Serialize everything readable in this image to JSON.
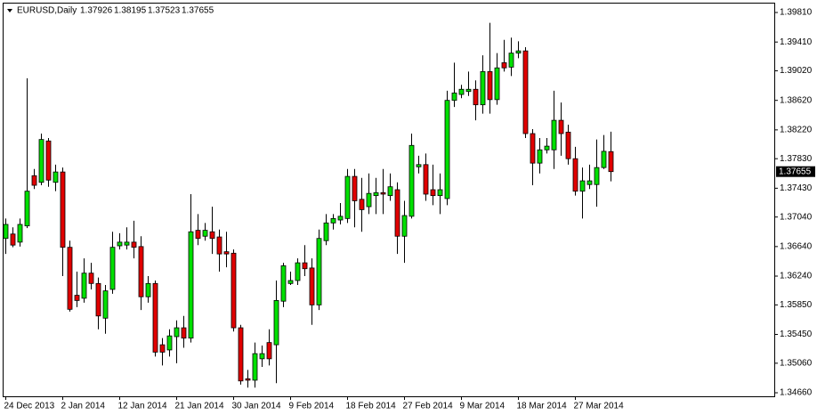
{
  "chart_data": {
    "type": "candlestick",
    "title": "EURUSD,Daily",
    "up_color": "#00e000",
    "down_color": "#e00000",
    "categories": [
      "24 Dec 2013",
      null,
      null,
      null,
      null,
      null,
      null,
      null,
      "2 Jan 2014",
      null,
      null,
      null,
      null,
      null,
      null,
      null,
      "12 Jan 2014",
      null,
      null,
      null,
      null,
      null,
      null,
      null,
      "21 Jan 2014",
      null,
      null,
      null,
      null,
      null,
      null,
      null,
      "30 Jan 2014",
      null,
      null,
      null,
      null,
      null,
      null,
      null,
      "9 Feb 2014",
      null,
      null,
      null,
      null,
      null,
      null,
      null,
      "18 Feb 2014",
      null,
      null,
      null,
      null,
      null,
      null,
      null,
      "27 Feb 2014",
      null,
      null,
      null,
      null,
      null,
      null,
      null,
      "9 Mar 2014",
      null,
      null,
      null,
      null,
      null,
      null,
      null,
      "18 Mar 2014",
      null,
      null,
      null,
      null,
      null,
      null,
      null,
      "27 Mar 2014",
      null,
      null,
      null,
      null,
      null
    ],
    "open": [
      1.3675,
      1.3681,
      1.367,
      1.3692,
      1.376,
      1.3751,
      1.3807,
      1.3751,
      1.3765,
      1.3663,
      1.3598,
      1.3594,
      1.3628,
      1.3614,
      1.3567,
      1.3606,
      1.3665,
      1.3666,
      1.367,
      1.3664,
      1.3596,
      1.3614,
      1.3531,
      1.3524,
      1.3542,
      1.3554,
      1.354,
      1.3686,
      1.3678,
      1.3684,
      1.3677,
      1.3657,
      1.3655,
      1.3554,
      1.3485,
      1.3483,
      1.3512,
      1.3534,
      1.3531,
      1.359,
      1.3614,
      1.3618,
      1.3642,
      1.3635,
      1.3585,
      1.3672,
      1.3696,
      1.37,
      1.3702,
      1.3759,
      1.3728,
      1.3718,
      1.3733,
      1.3737,
      1.3733,
      1.3741,
      1.3678,
      1.3705,
      1.3772,
      1.3775,
      1.3741,
      1.3733,
      1.3729,
      1.3862,
      1.387,
      1.3874,
      1.3877,
      1.3856,
      1.3901,
      1.3863,
      1.3913,
      1.3907,
      1.3926,
      1.3929,
      1.3817,
      1.3777,
      1.3795,
      1.3795,
      1.3835,
      1.3819,
      1.3783,
      1.3739,
      1.3748,
      1.3748,
      1.3771,
      1.37926
    ],
    "high": [
      1.3702,
      1.369,
      1.3702,
      1.3892,
      1.3769,
      1.3817,
      1.3811,
      1.3775,
      1.3771,
      1.3672,
      1.363,
      1.3648,
      1.3642,
      1.3622,
      1.3612,
      1.3684,
      1.3682,
      1.369,
      1.3699,
      1.3678,
      1.3624,
      1.3618,
      1.354,
      1.3552,
      1.3564,
      1.357,
      1.3735,
      1.3708,
      1.3696,
      1.3718,
      1.3687,
      1.3684,
      1.366,
      1.3558,
      1.3497,
      1.3534,
      1.353,
      1.3552,
      1.3618,
      1.3642,
      1.363,
      1.3648,
      1.3666,
      1.3648,
      1.3687,
      1.3708,
      1.3708,
      1.3723,
      1.3769,
      1.3769,
      1.3757,
      1.3763,
      1.3757,
      1.3769,
      1.3763,
      1.3751,
      1.3726,
      1.3817,
      1.3787,
      1.379,
      1.3775,
      1.3763,
      1.3875,
      1.3913,
      1.3883,
      1.3901,
      1.3889,
      1.3923,
      1.3967,
      1.3926,
      1.3944,
      1.3947,
      1.3942,
      1.3934,
      1.3823,
      1.3811,
      1.3811,
      1.3875,
      1.3859,
      1.3829,
      1.3799,
      1.3771,
      1.3775,
      1.3809,
      1.3815,
      1.38195
    ],
    "low": [
      1.3654,
      1.3663,
      1.3664,
      1.3689,
      1.3742,
      1.3747,
      1.3745,
      1.3739,
      1.3624,
      1.3576,
      1.3582,
      1.3588,
      1.3606,
      1.3552,
      1.3546,
      1.36,
      1.366,
      1.366,
      1.3648,
      1.3578,
      1.3588,
      1.3515,
      1.3503,
      1.3515,
      1.3506,
      1.3527,
      1.3534,
      1.3666,
      1.3672,
      1.3654,
      1.363,
      1.3636,
      1.3549,
      1.3477,
      1.3473,
      1.3473,
      1.3501,
      1.3503,
      1.3479,
      1.3582,
      1.3612,
      1.3612,
      1.3624,
      1.3558,
      1.3578,
      1.3666,
      1.3687,
      1.3694,
      1.3696,
      1.369,
      1.3684,
      1.3708,
      1.3708,
      1.3708,
      1.3726,
      1.3654,
      1.3642,
      1.3702,
      1.3763,
      1.3726,
      1.372,
      1.3708,
      1.372,
      1.3853,
      1.3865,
      1.3868,
      1.3835,
      1.3844,
      1.3844,
      1.3856,
      1.3901,
      1.3895,
      1.3919,
      1.3811,
      1.3747,
      1.3763,
      1.379,
      1.3769,
      1.3787,
      1.3775,
      1.3733,
      1.3702,
      1.3742,
      1.3718,
      1.3769,
      1.37523
    ],
    "close": [
      1.3694,
      1.3666,
      1.3694,
      1.3739,
      1.3747,
      1.3809,
      1.3754,
      1.3765,
      1.3663,
      1.3579,
      1.3591,
      1.3628,
      1.3614,
      1.357,
      1.3604,
      1.3663,
      1.367,
      1.367,
      1.3663,
      1.3596,
      1.3614,
      1.3521,
      1.3521,
      1.3543,
      1.3554,
      1.354,
      1.3684,
      1.3675,
      1.3686,
      1.3675,
      1.3654,
      1.3654,
      1.3554,
      1.3482,
      1.3483,
      1.3519,
      1.3519,
      1.3512,
      1.3591,
      1.3638,
      1.3618,
      1.3642,
      1.3634,
      1.3585,
      1.3675,
      1.3696,
      1.3702,
      1.3705,
      1.3759,
      1.3726,
      1.3714,
      1.3736,
      1.3737,
      1.3735,
      1.3745,
      1.3678,
      1.3706,
      1.3801,
      1.3775,
      1.3735,
      1.3733,
      1.3741,
      1.3862,
      1.3872,
      1.3877,
      1.3877,
      1.3856,
      1.3901,
      1.3863,
      1.3906,
      1.3906,
      1.3926,
      1.3929,
      1.3817,
      1.3777,
      1.3795,
      1.38,
      1.3835,
      1.3817,
      1.3783,
      1.3739,
      1.3753,
      1.3753,
      1.3771,
      1.3793,
      1.37655
    ],
    "ylim": [
      1.34612,
      1.39931
    ],
    "yticks": [
      {
        "value": 1.3981,
        "label": "1.39810"
      },
      {
        "value": 1.3941,
        "label": "1.39410"
      },
      {
        "value": 1.3902,
        "label": "1.39020"
      },
      {
        "value": 1.3862,
        "label": "1.38620"
      },
      {
        "value": 1.3822,
        "label": "1.38220"
      },
      {
        "value": 1.3783,
        "label": "1.37830"
      },
      {
        "value": 1.3743,
        "label": "1.37430"
      },
      {
        "value": 1.3704,
        "label": "1.37040"
      },
      {
        "value": 1.3664,
        "label": "1.36640"
      },
      {
        "value": 1.3624,
        "label": "1.36240"
      },
      {
        "value": 1.3585,
        "label": "1.35850"
      },
      {
        "value": 1.3545,
        "label": "1.35450"
      },
      {
        "value": 1.3506,
        "label": "1.35060"
      },
      {
        "value": 1.3466,
        "label": "1.34660"
      }
    ],
    "grid": false
  }
}
